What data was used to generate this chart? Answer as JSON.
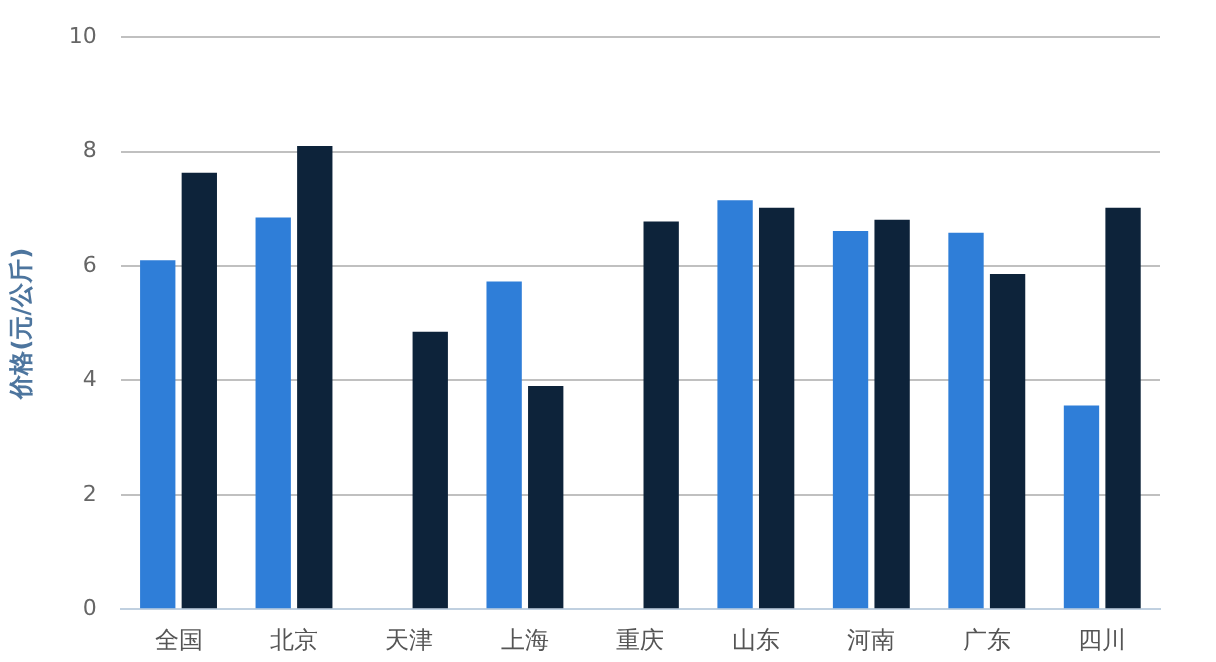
{
  "chart_data": {
    "type": "bar",
    "ylabel": "价格(元/公斤)",
    "categories": [
      "全国",
      "北京",
      "天津",
      "上海",
      "重庆",
      "山东",
      "河南",
      "广东",
      "四川"
    ],
    "series": [
      {
        "color": "#2f7ed8",
        "values": [
          6.1,
          6.85,
          null,
          5.73,
          null,
          7.15,
          6.61,
          6.58,
          3.56
        ]
      },
      {
        "color": "#0d233a",
        "values": [
          7.63,
          8.1,
          4.85,
          3.9,
          6.78,
          7.02,
          6.81,
          5.86,
          7.02
        ]
      }
    ],
    "ylim": [
      0,
      10
    ],
    "yticks": [
      0,
      2,
      4,
      6,
      8,
      10
    ],
    "grid": "y",
    "legend": false
  }
}
